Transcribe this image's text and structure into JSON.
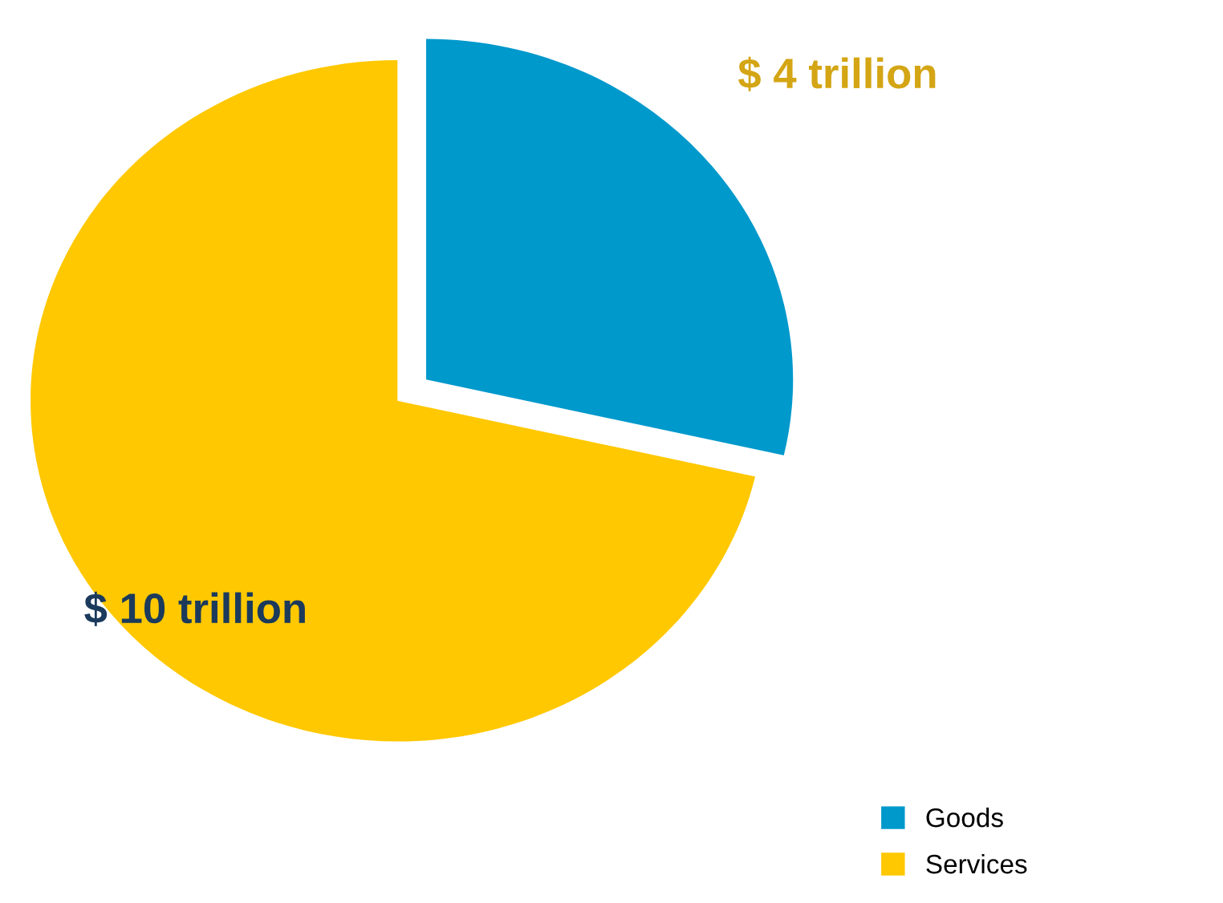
{
  "chart_data": {
    "type": "pie",
    "categories": [
      "Goods",
      "Services"
    ],
    "values": [
      4,
      10
    ],
    "colors": [
      "#0099cc",
      "#ffc800"
    ],
    "value_labels": [
      "$ 4 trillion",
      "$ 10 trillion"
    ],
    "legend": "bottom right"
  }
}
